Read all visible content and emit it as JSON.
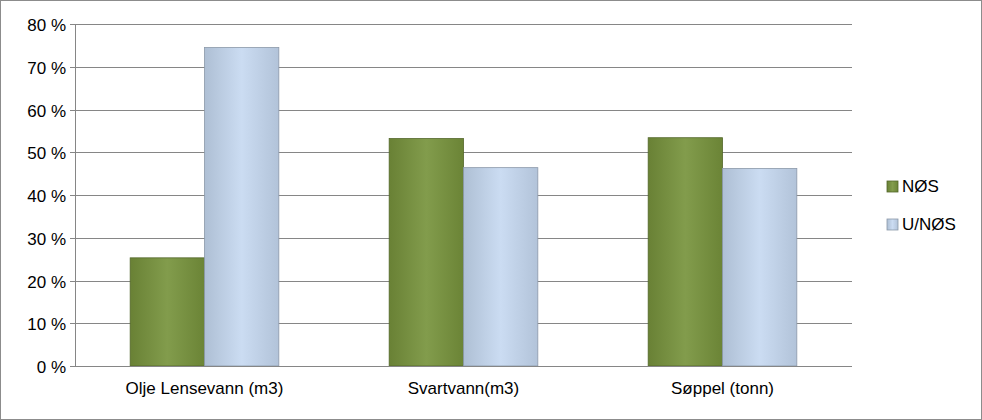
{
  "chart_data": {
    "type": "bar",
    "categories": [
      "Olje Lensevann (m3)",
      "Svartvann(m3)",
      "Søppel (tonn)"
    ],
    "series": [
      {
        "name": "NØS",
        "color": "#77933c",
        "values": [
          25.3,
          53.2,
          53.4
        ]
      },
      {
        "name": "U/NØS",
        "color": "#c6d9f1",
        "values": [
          74.5,
          46.4,
          46.2
        ]
      }
    ],
    "ylim": [
      0,
      80
    ],
    "yticks": [
      {
        "value": 0,
        "label": "0 %"
      },
      {
        "value": 10,
        "label": "10 %"
      },
      {
        "value": 20,
        "label": "20 %"
      },
      {
        "value": 30,
        "label": "30 %"
      },
      {
        "value": 40,
        "label": "40 %"
      },
      {
        "value": 50,
        "label": "50 %"
      },
      {
        "value": 60,
        "label": "60 %"
      },
      {
        "value": 70,
        "label": "70 %"
      },
      {
        "value": 80,
        "label": "80 %"
      }
    ],
    "grid": true,
    "legend": "right"
  }
}
